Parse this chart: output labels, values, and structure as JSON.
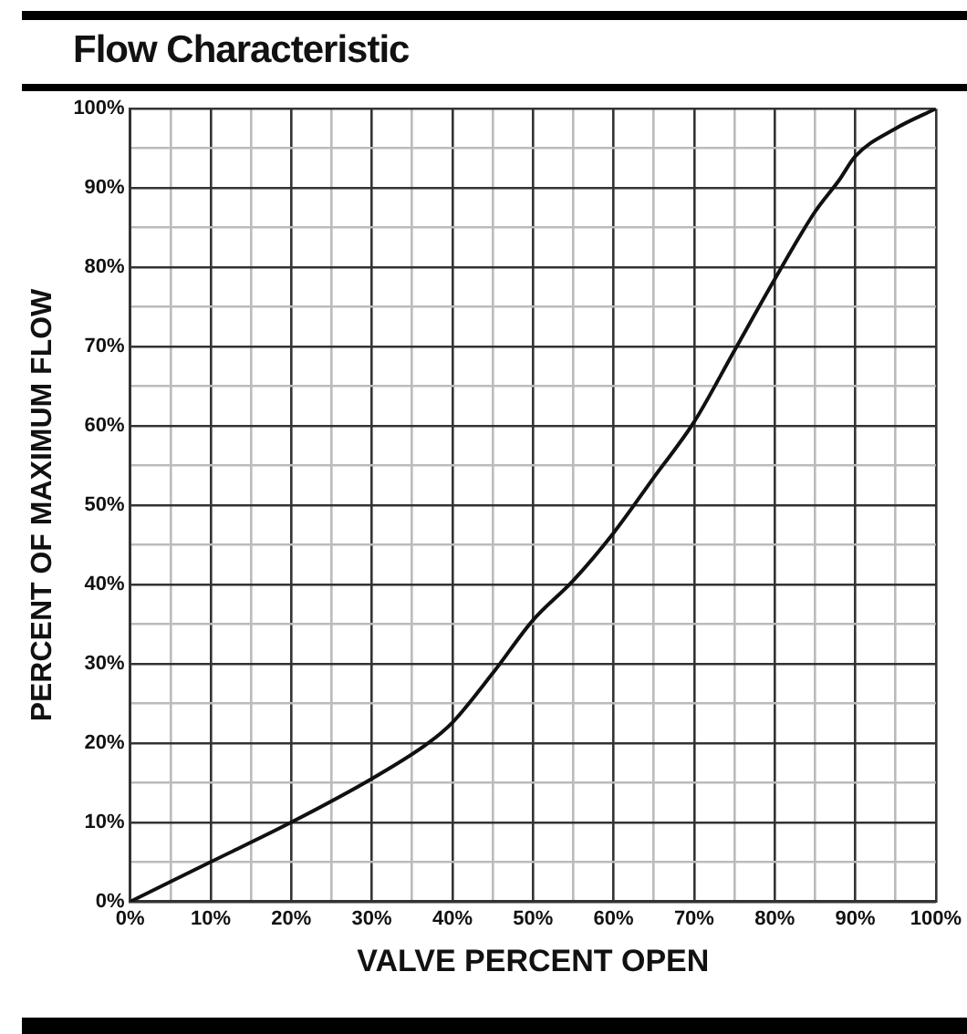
{
  "chart_data": {
    "type": "line",
    "title": "Flow Characteristic",
    "xlabel": "VALVE PERCENT OPEN",
    "ylabel": "PERCENT OF MAXIMUM FLOW",
    "x": [
      0,
      10,
      20,
      30,
      37,
      40,
      45,
      50,
      55,
      60,
      65,
      70,
      75,
      80,
      85,
      88,
      90,
      95,
      100
    ],
    "series": [
      {
        "color": "#111111",
        "values": [
          0,
          5,
          10,
          15.5,
          20,
          22.6,
          28.8,
          35.5,
          40.5,
          46.5,
          53.5,
          60.5,
          69.5,
          78.5,
          87,
          91,
          94,
          97.5,
          100
        ]
      }
    ],
    "xlim": [
      0,
      100
    ],
    "ylim": [
      0,
      100
    ],
    "xticks": [
      {
        "value": 0,
        "label": "0%"
      },
      {
        "value": 5,
        "label": null
      },
      {
        "value": 10,
        "label": "10%"
      },
      {
        "value": 15,
        "label": null
      },
      {
        "value": 20,
        "label": "20%"
      },
      {
        "value": 25,
        "label": null
      },
      {
        "value": 30,
        "label": "30%"
      },
      {
        "value": 35,
        "label": null
      },
      {
        "value": 40,
        "label": "40%"
      },
      {
        "value": 45,
        "label": null
      },
      {
        "value": 50,
        "label": "50%"
      },
      {
        "value": 55,
        "label": null
      },
      {
        "value": 60,
        "label": "60%"
      },
      {
        "value": 65,
        "label": null
      },
      {
        "value": 70,
        "label": "70%"
      },
      {
        "value": 75,
        "label": null
      },
      {
        "value": 80,
        "label": "80%"
      },
      {
        "value": 85,
        "label": null
      },
      {
        "value": 90,
        "label": "90%"
      },
      {
        "value": 95,
        "label": null
      },
      {
        "value": 100,
        "label": "100%"
      }
    ],
    "yticks": [
      {
        "value": 0,
        "label": "0%"
      },
      {
        "value": 5,
        "label": null
      },
      {
        "value": 10,
        "label": "10%"
      },
      {
        "value": 15,
        "label": null
      },
      {
        "value": 20,
        "label": "20%"
      },
      {
        "value": 25,
        "label": null
      },
      {
        "value": 30,
        "label": "30%"
      },
      {
        "value": 35,
        "label": null
      },
      {
        "value": 40,
        "label": "40%"
      },
      {
        "value": 45,
        "label": null
      },
      {
        "value": 50,
        "label": "50%"
      },
      {
        "value": 55,
        "label": null
      },
      {
        "value": 60,
        "label": "60%"
      },
      {
        "value": 65,
        "label": null
      },
      {
        "value": 70,
        "label": "70%"
      },
      {
        "value": 75,
        "label": null
      },
      {
        "value": 80,
        "label": "80%"
      },
      {
        "value": 85,
        "label": null
      },
      {
        "value": 90,
        "label": "90%"
      },
      {
        "value": 95,
        "label": null
      },
      {
        "value": 100,
        "label": "100%"
      }
    ],
    "grid": true,
    "legend": false,
    "marker": "none",
    "line_style": "solid"
  }
}
